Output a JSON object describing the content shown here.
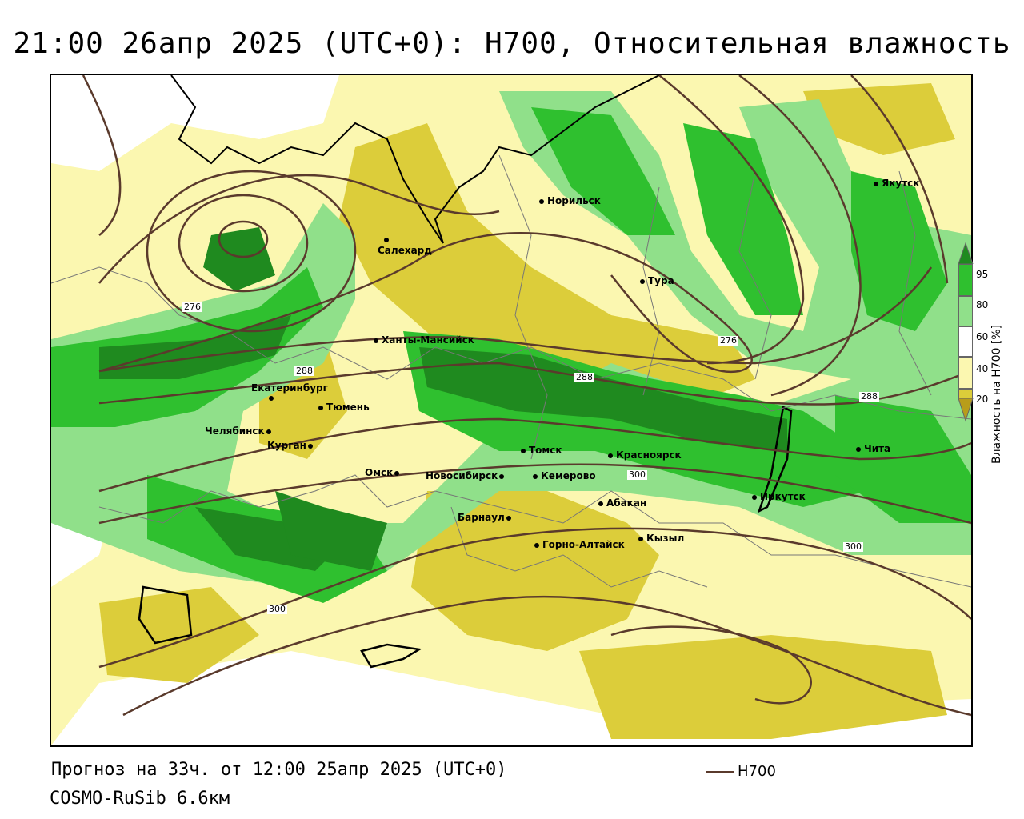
{
  "title": "21:00 26апр 2025 (UTC+0): H700, Относительная влажность",
  "footer": {
    "forecast": "Прогноз на 33ч. от 12:00 25апр 2025 (UTC+0)",
    "model": "COSMO-RuSib 6.6км",
    "line_legend": "H700"
  },
  "legend": {
    "title": "Влажность на H700 [%]",
    "ticks": [
      "95",
      "80",
      "60",
      "40",
      "20"
    ],
    "colors": {
      "c95": "#1f8a1f",
      "c80": "#2fc02f",
      "c60": "#90e08a",
      "c50": "#ffffff",
      "c40": "#fbf7b0",
      "c20": "#dccd3a",
      "c0": "#b89d1a"
    }
  },
  "contour_color": "#5a3a2c",
  "contour_labels": [
    "276",
    "288",
    "276",
    "288",
    "288",
    "300",
    "300",
    "300"
  ],
  "cities": [
    {
      "name": "Норильск"
    },
    {
      "name": "Якутск"
    },
    {
      "name": "Салехард"
    },
    {
      "name": "Тура"
    },
    {
      "name": "Ханты-Мансийск"
    },
    {
      "name": "Екатеринбург"
    },
    {
      "name": "Тюмень"
    },
    {
      "name": "Челябинск"
    },
    {
      "name": "Курган"
    },
    {
      "name": "Омск"
    },
    {
      "name": "Новосибирск"
    },
    {
      "name": "Томск"
    },
    {
      "name": "Кемерово"
    },
    {
      "name": "Красноярск"
    },
    {
      "name": "Абакан"
    },
    {
      "name": "Барнаул"
    },
    {
      "name": "Горно-Алтайск"
    },
    {
      "name": "Кызыл"
    },
    {
      "name": "Иркутск"
    },
    {
      "name": "Чита"
    }
  ]
}
